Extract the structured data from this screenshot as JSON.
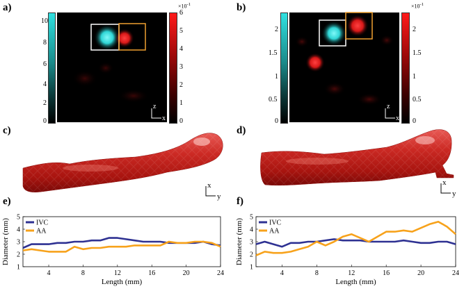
{
  "panels": {
    "a": "a)",
    "b": "b)",
    "c": "c)",
    "d": "d)",
    "e": "e)",
    "f": "f)"
  },
  "colorbars": {
    "a_left_ticks": [
      "10",
      "8",
      "6",
      "4",
      "2",
      "0"
    ],
    "a_right_ticks": [
      "6",
      "5",
      "4",
      "3",
      "2",
      "1",
      "0"
    ],
    "a_right_exp_base": "×10",
    "a_right_exp": "-1",
    "b_left_ticks": [
      "2",
      "1.5",
      "1",
      "0.5",
      "0"
    ],
    "b_right_ticks": [
      "2",
      "1.5",
      "1",
      "0.5",
      "0"
    ],
    "b_right_exp_base": "×10",
    "b_right_exp": "-1"
  },
  "axes_indicators": {
    "a_vertical": "z",
    "a_horizontal": "x",
    "b_vertical": "z",
    "b_horizontal": "x",
    "c_vertical": "x",
    "c_horizontal": "y",
    "d_vertical": "x",
    "d_horizontal": "y"
  },
  "colors": {
    "ivc": "#2e3192",
    "aa": "#f7a21b",
    "cyan": "#2fe0e0",
    "red": "#ff2020",
    "box_white": "#ffffff",
    "box_orange": "#f0a030",
    "mesh_red": "#c0201c"
  },
  "chart_data": [
    {
      "id": "e",
      "type": "line",
      "xlabel": "Length (mm)",
      "ylabel": "Diameter (mm)",
      "xlim": [
        1,
        24
      ],
      "ylim": [
        1,
        5
      ],
      "xticks": [
        "4",
        "8",
        "12",
        "16",
        "20",
        "24"
      ],
      "yticks": [
        "1",
        "2",
        "3",
        "4",
        "5"
      ],
      "legend": [
        "IVC",
        "AA"
      ],
      "x": [
        1,
        2,
        3,
        4,
        5,
        6,
        7,
        8,
        9,
        10,
        11,
        12,
        13,
        14,
        15,
        16,
        17,
        18,
        19,
        20,
        21,
        22,
        23,
        24
      ],
      "series": [
        {
          "name": "IVC",
          "values": [
            2.5,
            2.8,
            2.8,
            2.8,
            2.9,
            2.9,
            3.0,
            3.0,
            3.1,
            3.1,
            3.3,
            3.3,
            3.2,
            3.1,
            3.0,
            3.0,
            3.0,
            2.9,
            2.9,
            2.9,
            2.9,
            3.0,
            2.8,
            2.7
          ]
        },
        {
          "name": "AA",
          "values": [
            2.3,
            2.4,
            2.3,
            2.2,
            2.2,
            2.2,
            2.6,
            2.4,
            2.5,
            2.5,
            2.6,
            2.6,
            2.6,
            2.7,
            2.7,
            2.7,
            2.7,
            3.0,
            2.9,
            2.9,
            3.0,
            3.0,
            2.9,
            2.6
          ]
        }
      ]
    },
    {
      "id": "f",
      "type": "line",
      "xlabel": "Length (mm)",
      "ylabel": "Diameter (mm)",
      "xlim": [
        1,
        24
      ],
      "ylim": [
        1,
        5
      ],
      "xticks": [
        "4",
        "8",
        "12",
        "16",
        "20",
        "24"
      ],
      "yticks": [
        "1",
        "2",
        "3",
        "4",
        "5"
      ],
      "legend": [
        "IVC",
        "AA"
      ],
      "x": [
        1,
        2,
        3,
        4,
        5,
        6,
        7,
        8,
        9,
        10,
        11,
        12,
        13,
        14,
        15,
        16,
        17,
        18,
        19,
        20,
        21,
        22,
        23,
        24
      ],
      "series": [
        {
          "name": "IVC",
          "values": [
            2.8,
            3.0,
            2.8,
            2.6,
            2.9,
            2.9,
            3.0,
            3.0,
            3.1,
            3.2,
            3.1,
            3.1,
            3.1,
            3.0,
            3.0,
            3.0,
            3.0,
            3.1,
            3.0,
            2.9,
            2.9,
            3.0,
            3.0,
            2.8
          ]
        },
        {
          "name": "AA",
          "values": [
            1.9,
            2.2,
            2.1,
            2.1,
            2.2,
            2.4,
            2.6,
            3.0,
            2.7,
            3.0,
            3.4,
            3.6,
            3.3,
            3.0,
            3.4,
            3.8,
            3.8,
            3.9,
            3.8,
            4.1,
            4.4,
            4.6,
            4.2,
            3.6
          ]
        }
      ]
    }
  ]
}
